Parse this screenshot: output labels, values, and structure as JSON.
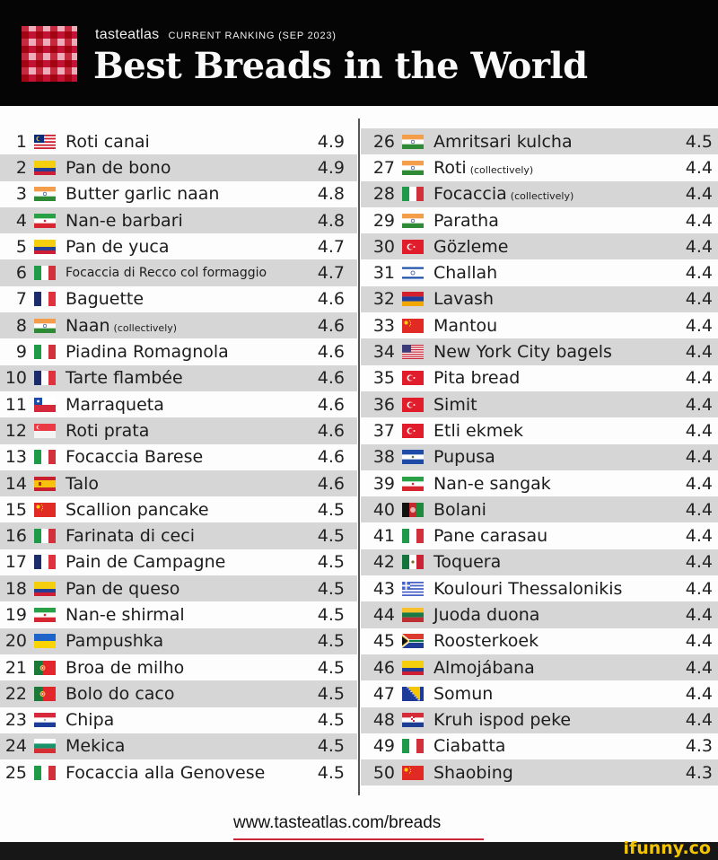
{
  "header": {
    "brand": "tasteatlas",
    "subtitle": "CURRENT RANKING (SEP 2023)",
    "title": "Best Breads in the World"
  },
  "rankings": [
    {
      "rank": "1",
      "name": "Roti canai",
      "note": "",
      "score": "4.9",
      "flag": "malaysia-flag"
    },
    {
      "rank": "2",
      "name": "Pan de bono",
      "note": "",
      "score": "4.9",
      "flag": "colombia-flag"
    },
    {
      "rank": "3",
      "name": "Butter garlic naan",
      "note": "",
      "score": "4.8",
      "flag": "india-flag"
    },
    {
      "rank": "4",
      "name": "Nan-e barbari",
      "note": "",
      "score": "4.8",
      "flag": "iran-flag"
    },
    {
      "rank": "5",
      "name": "Pan de yuca",
      "note": "",
      "score": "4.7",
      "flag": "colombia-flag"
    },
    {
      "rank": "6",
      "name": "Focaccia di Recco col formaggio",
      "note": "",
      "score": "4.7",
      "flag": "italy-flag"
    },
    {
      "rank": "7",
      "name": "Baguette",
      "note": "",
      "score": "4.6",
      "flag": "france-flag"
    },
    {
      "rank": "8",
      "name": "Naan",
      "note": "(collectively)",
      "score": "4.6",
      "flag": "india-flag"
    },
    {
      "rank": "9",
      "name": "Piadina Romagnola",
      "note": "",
      "score": "4.6",
      "flag": "italy-flag"
    },
    {
      "rank": "10",
      "name": "Tarte flambée",
      "note": "",
      "score": "4.6",
      "flag": "france-flag"
    },
    {
      "rank": "11",
      "name": "Marraqueta",
      "note": "",
      "score": "4.6",
      "flag": "chile-flag"
    },
    {
      "rank": "12",
      "name": "Roti prata",
      "note": "",
      "score": "4.6",
      "flag": "singapore-flag"
    },
    {
      "rank": "13",
      "name": "Focaccia Barese",
      "note": "",
      "score": "4.6",
      "flag": "italy-flag"
    },
    {
      "rank": "14",
      "name": "Talo",
      "note": "",
      "score": "4.6",
      "flag": "spain-flag"
    },
    {
      "rank": "15",
      "name": "Scallion pancake",
      "note": "",
      "score": "4.5",
      "flag": "china-flag"
    },
    {
      "rank": "16",
      "name": "Farinata di ceci",
      "note": "",
      "score": "4.5",
      "flag": "italy-flag"
    },
    {
      "rank": "17",
      "name": "Pain de Campagne",
      "note": "",
      "score": "4.5",
      "flag": "france-flag"
    },
    {
      "rank": "18",
      "name": "Pan de queso",
      "note": "",
      "score": "4.5",
      "flag": "colombia-flag"
    },
    {
      "rank": "19",
      "name": "Nan-e shirmal",
      "note": "",
      "score": "4.5",
      "flag": "iran-flag"
    },
    {
      "rank": "20",
      "name": "Pampushka",
      "note": "",
      "score": "4.5",
      "flag": "ukraine-flag"
    },
    {
      "rank": "21",
      "name": "Broa de milho",
      "note": "",
      "score": "4.5",
      "flag": "portugal-flag"
    },
    {
      "rank": "22",
      "name": "Bolo do caco",
      "note": "",
      "score": "4.5",
      "flag": "portugal-flag"
    },
    {
      "rank": "23",
      "name": "Chipa",
      "note": "",
      "score": "4.5",
      "flag": "paraguay-flag"
    },
    {
      "rank": "24",
      "name": "Mekica",
      "note": "",
      "score": "4.5",
      "flag": "bulgaria-flag"
    },
    {
      "rank": "25",
      "name": "Focaccia alla Genovese",
      "note": "",
      "score": "4.5",
      "flag": "italy-flag"
    },
    {
      "rank": "26",
      "name": "Amritsari kulcha",
      "note": "",
      "score": "4.5",
      "flag": "india-flag"
    },
    {
      "rank": "27",
      "name": "Roti",
      "note": "(collectively)",
      "score": "4.4",
      "flag": "india-flag"
    },
    {
      "rank": "28",
      "name": "Focaccia",
      "note": "(collectively)",
      "score": "4.4",
      "flag": "italy-flag"
    },
    {
      "rank": "29",
      "name": "Paratha",
      "note": "",
      "score": "4.4",
      "flag": "india-flag"
    },
    {
      "rank": "30",
      "name": "Gözleme",
      "note": "",
      "score": "4.4",
      "flag": "turkey-flag"
    },
    {
      "rank": "31",
      "name": "Challah",
      "note": "",
      "score": "4.4",
      "flag": "israel-flag"
    },
    {
      "rank": "32",
      "name": "Lavash",
      "note": "",
      "score": "4.4",
      "flag": "armenia-flag"
    },
    {
      "rank": "33",
      "name": "Mantou",
      "note": "",
      "score": "4.4",
      "flag": "china-flag"
    },
    {
      "rank": "34",
      "name": "New York City bagels",
      "note": "",
      "score": "4.4",
      "flag": "usa-flag"
    },
    {
      "rank": "35",
      "name": "Pita bread",
      "note": "",
      "score": "4.4",
      "flag": "turkey-flag"
    },
    {
      "rank": "36",
      "name": "Simit",
      "note": "",
      "score": "4.4",
      "flag": "turkey-flag"
    },
    {
      "rank": "37",
      "name": "Etli ekmek",
      "note": "",
      "score": "4.4",
      "flag": "turkey-flag"
    },
    {
      "rank": "38",
      "name": "Pupusa",
      "note": "",
      "score": "4.4",
      "flag": "el-salvador-flag"
    },
    {
      "rank": "39",
      "name": "Nan-e sangak",
      "note": "",
      "score": "4.4",
      "flag": "iran-flag"
    },
    {
      "rank": "40",
      "name": "Bolani",
      "note": "",
      "score": "4.4",
      "flag": "afghanistan-flag"
    },
    {
      "rank": "41",
      "name": "Pane carasau",
      "note": "",
      "score": "4.4",
      "flag": "italy-flag"
    },
    {
      "rank": "42",
      "name": "Toquera",
      "note": "",
      "score": "4.4",
      "flag": "mexico-flag"
    },
    {
      "rank": "43",
      "name": "Koulouri Thessalonikis",
      "note": "",
      "score": "4.4",
      "flag": "greece-flag"
    },
    {
      "rank": "44",
      "name": "Juoda duona",
      "note": "",
      "score": "4.4",
      "flag": "lithuania-flag"
    },
    {
      "rank": "45",
      "name": "Roosterkoek",
      "note": "",
      "score": "4.4",
      "flag": "south-africa-flag"
    },
    {
      "rank": "46",
      "name": "Almojábana",
      "note": "",
      "score": "4.4",
      "flag": "colombia-flag"
    },
    {
      "rank": "47",
      "name": "Somun",
      "note": "",
      "score": "4.4",
      "flag": "bosnia-flag"
    },
    {
      "rank": "48",
      "name": "Kruh ispod peke",
      "note": "",
      "score": "4.4",
      "flag": "croatia-flag"
    },
    {
      "rank": "49",
      "name": "Ciabatta",
      "note": "",
      "score": "4.3",
      "flag": "italy-flag"
    },
    {
      "rank": "50",
      "name": "Shaobing",
      "note": "",
      "score": "4.3",
      "flag": "china-flag"
    }
  ],
  "footer": {
    "url": "www.tasteatlas.com/breads",
    "watermark": "ifunny.co"
  },
  "colors": {
    "header_bg": "#050505",
    "row_shade": "#d6d6d6",
    "accent_red": "#c8283a",
    "watermark": "#f5c400"
  }
}
